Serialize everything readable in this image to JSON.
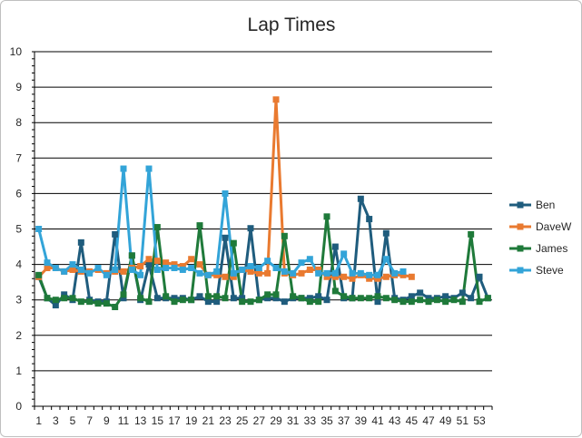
{
  "chart_data": {
    "type": "line",
    "title": "Lap Times",
    "xlabel": "",
    "ylabel": "",
    "ylim": [
      0,
      10
    ],
    "y_ticks": [
      0,
      1,
      2,
      3,
      4,
      5,
      6,
      7,
      8,
      9,
      10
    ],
    "x_range": [
      1,
      54
    ],
    "x_tick_labels": [
      "1",
      "3",
      "5",
      "7",
      "9",
      "11",
      "13",
      "15",
      "17",
      "19",
      "21",
      "23",
      "25",
      "27",
      "29",
      "31",
      "33",
      "35",
      "37",
      "39",
      "41",
      "43",
      "45",
      "47",
      "49",
      "51",
      "53"
    ],
    "grid": true,
    "legend_position": "right",
    "series": [
      {
        "name": "Ben",
        "color": "#1f5c7d",
        "values": [
          3.65,
          3.05,
          2.85,
          3.15,
          3.0,
          4.62,
          3.0,
          2.95,
          2.95,
          4.85,
          3.05,
          4.25,
          3.0,
          4.0,
          3.05,
          3.05,
          3.05,
          3.05,
          3.0,
          3.1,
          2.95,
          2.95,
          4.75,
          3.05,
          3.05,
          5.02,
          3.0,
          3.05,
          3.05,
          2.95,
          3.05,
          3.05,
          3.05,
          3.1,
          3.0,
          4.5,
          3.05,
          3.05,
          5.85,
          5.28,
          2.95,
          4.88,
          3.05,
          3.0,
          3.1,
          3.2,
          3.05,
          3.05,
          3.1,
          3.05,
          3.2,
          3.05,
          3.65,
          3.05
        ]
      },
      {
        "name": "DaveW",
        "color": "#e97a30",
        "values": [
          3.65,
          3.9,
          3.9,
          3.8,
          3.85,
          3.8,
          3.8,
          3.85,
          3.75,
          3.8,
          3.8,
          3.9,
          3.95,
          4.15,
          4.1,
          4.05,
          4.0,
          3.95,
          4.15,
          4.0,
          3.7,
          3.7,
          3.65,
          3.65,
          3.85,
          3.8,
          3.75,
          3.75,
          8.65,
          3.75,
          3.7,
          3.75,
          3.85,
          3.85,
          3.65,
          3.65,
          3.65,
          3.6,
          3.7,
          3.6,
          3.6,
          3.65,
          3.7,
          3.7,
          3.65
        ]
      },
      {
        "name": "James",
        "color": "#1f7a3a",
        "values": [
          3.7,
          3.05,
          3.0,
          3.05,
          3.05,
          2.95,
          2.95,
          2.9,
          2.9,
          2.8,
          3.15,
          4.25,
          3.05,
          2.95,
          5.05,
          3.1,
          2.95,
          3.0,
          3.0,
          5.1,
          3.1,
          3.1,
          3.05,
          4.6,
          2.95,
          2.95,
          3.0,
          3.15,
          3.15,
          4.8,
          3.1,
          3.05,
          2.95,
          2.95,
          5.35,
          3.25,
          3.1,
          3.05,
          3.05,
          3.05,
          3.1,
          3.05,
          3.0,
          2.95,
          2.95,
          3.0,
          2.95,
          3.0,
          2.95,
          3.0,
          2.95,
          4.85,
          2.95,
          3.05
        ]
      },
      {
        "name": "Steve",
        "color": "#33a4d8",
        "values": [
          5.0,
          4.05,
          3.9,
          3.8,
          4.0,
          3.85,
          3.75,
          3.9,
          3.7,
          3.85,
          6.7,
          3.85,
          3.7,
          6.7,
          3.85,
          3.9,
          3.9,
          3.85,
          3.9,
          3.75,
          3.7,
          3.8,
          6.0,
          3.75,
          3.85,
          3.95,
          3.9,
          4.1,
          3.9,
          3.8,
          3.75,
          4.05,
          4.15,
          3.75,
          3.75,
          3.75,
          4.3,
          3.75,
          3.75,
          3.7,
          3.7,
          4.15,
          3.75,
          3.8
        ]
      }
    ]
  }
}
